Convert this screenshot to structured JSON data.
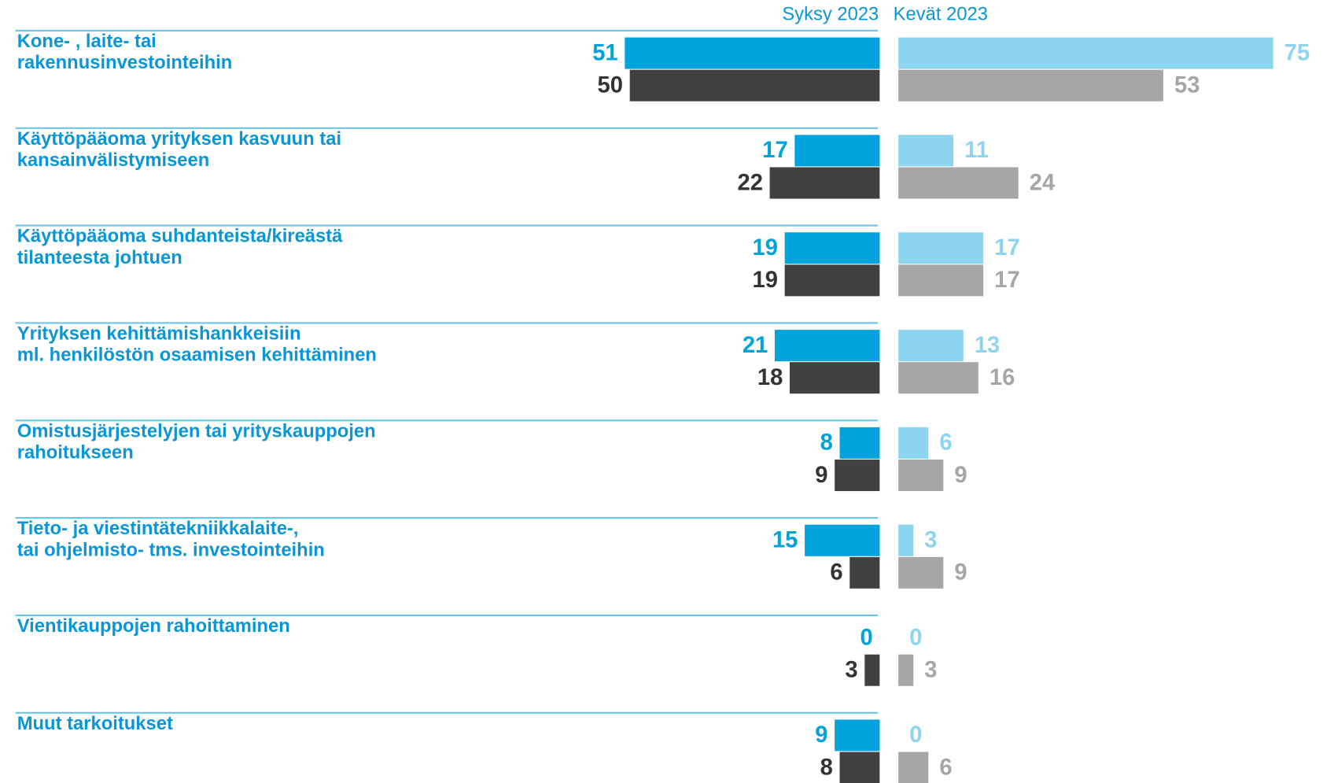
{
  "chart_data": {
    "type": "bar",
    "orientation": "horizontal",
    "categories": [
      [
        "Kone- , laite- tai",
        "rakennusinvestointeihin"
      ],
      [
        "Käyttöpääoma yrityksen kasvuun tai",
        "kansainvälistymiseen"
      ],
      [
        "Käyttöpääoma suhdanteista/kireästä",
        "tilanteesta johtuen"
      ],
      [
        "Yrityksen kehittämishankkeisiin",
        "ml. henkilöstön osaamisen kehittäminen"
      ],
      [
        "Omistusjärjestelyjen tai yrityskauppojen",
        "rahoitukseen"
      ],
      [
        "Tieto- ja viestintätekniikkalaite-,",
        "tai ohjelmisto- tms. investointeihin"
      ],
      [
        "Vientikauppojen rahoittaminen"
      ],
      [
        "Muut tarkoitukset"
      ]
    ],
    "xlim": [
      0,
      80
    ],
    "panels": [
      {
        "title": "Syksy 2023",
        "series": [
          {
            "color": "#00a3dc",
            "label_color": "#00a3dc",
            "values": [
              51,
              17,
              19,
              21,
              8,
              15,
              0,
              9
            ]
          },
          {
            "color": "#404040",
            "label_color": "#333333",
            "values": [
              50,
              22,
              19,
              18,
              9,
              6,
              3,
              8
            ]
          }
        ]
      },
      {
        "title": "Kevät 2023",
        "series": [
          {
            "color": "#8dd5ef",
            "label_color": "#8dd5ef",
            "values": [
              75,
              11,
              17,
              13,
              6,
              3,
              0,
              0
            ]
          },
          {
            "color": "#a6a6a6",
            "label_color": "#a6a6a6",
            "values": [
              53,
              24,
              17,
              16,
              9,
              9,
              3,
              6
            ]
          }
        ]
      }
    ]
  }
}
